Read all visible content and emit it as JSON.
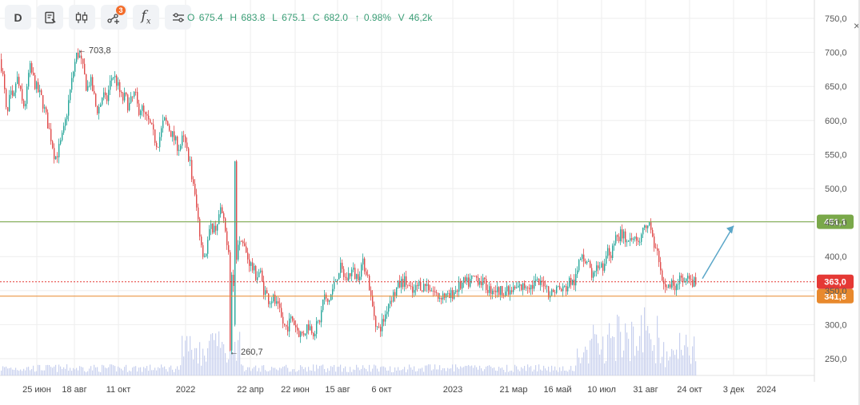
{
  "toolbar": {
    "interval_label": "D",
    "indicators_badge": "3",
    "items": [
      "interval",
      "instrument-menu",
      "chart-type",
      "indicators",
      "functions",
      "settings"
    ]
  },
  "ohlc": {
    "o_label": "O",
    "o": "675.4",
    "h_label": "H",
    "h": "683.8",
    "l_label": "L",
    "l": "675.1",
    "c_label": "C",
    "c": "682.0",
    "arrow": "↑",
    "change": "0.98%",
    "v_label": "V",
    "v": "46,2k"
  },
  "close_glyph": "×",
  "colors": {
    "up": "#26a69a",
    "down": "#e04a4a",
    "green_level": "#7aa84a",
    "orange_level": "#e8892d",
    "red_price": "#e53935",
    "arrow": "#5aa6c8",
    "volume": "#c8d0ee",
    "grid": "#eeeeee"
  },
  "chart_data": {
    "type": "candlestick",
    "y_axis": {
      "ticks": [
        "750,0",
        "700,0",
        "650,0",
        "600,0",
        "550,0",
        "500,0",
        "450,0",
        "400,0",
        "350,0",
        "300,0",
        "250,0"
      ],
      "range": [
        228,
        765
      ]
    },
    "x_axis": {
      "ticks": [
        "25 июн",
        "18 авг",
        "11 окт",
        "2022",
        "22 апр",
        "22 июн",
        "15 авг",
        "6 окт",
        "2023",
        "21 мар",
        "16 май",
        "10 июл",
        "31 авг",
        "24 окт",
        "3 дек",
        "2024"
      ]
    },
    "price_path": [
      [
        0,
        690
      ],
      [
        4,
        655
      ],
      [
        8,
        600
      ],
      [
        12,
        640
      ],
      [
        16,
        625
      ],
      [
        20,
        665
      ],
      [
        24,
        645
      ],
      [
        28,
        620
      ],
      [
        32,
        630
      ],
      [
        36,
        680
      ],
      [
        40,
        665
      ],
      [
        44,
        650
      ],
      [
        48,
        640
      ],
      [
        52,
        630
      ],
      [
        56,
        610
      ],
      [
        60,
        590
      ],
      [
        64,
        570
      ],
      [
        68,
        545
      ],
      [
        72,
        555
      ],
      [
        76,
        570
      ],
      [
        80,
        590
      ],
      [
        84,
        620
      ],
      [
        88,
        650
      ],
      [
        92,
        680
      ],
      [
        96,
        700
      ],
      [
        100,
        690
      ],
      [
        104,
        670
      ],
      [
        108,
        645
      ],
      [
        112,
        660
      ],
      [
        116,
        640
      ],
      [
        120,
        615
      ],
      [
        124,
        620
      ],
      [
        128,
        640
      ],
      [
        132,
        625
      ],
      [
        136,
        650
      ],
      [
        140,
        668
      ],
      [
        144,
        660
      ],
      [
        148,
        645
      ],
      [
        152,
        630
      ],
      [
        156,
        635
      ],
      [
        160,
        620
      ],
      [
        164,
        630
      ],
      [
        168,
        640
      ],
      [
        172,
        615
      ],
      [
        176,
        620
      ],
      [
        180,
        605
      ],
      [
        184,
        600
      ],
      [
        188,
        590
      ],
      [
        192,
        575
      ],
      [
        196,
        565
      ],
      [
        200,
        580
      ],
      [
        204,
        600
      ],
      [
        208,
        595
      ],
      [
        212,
        585
      ],
      [
        216,
        575
      ],
      [
        220,
        565
      ],
      [
        224,
        560
      ],
      [
        228,
        575
      ],
      [
        232,
        560
      ],
      [
        236,
        545
      ],
      [
        240,
        510
      ],
      [
        244,
        480
      ],
      [
        248,
        445
      ],
      [
        252,
        410
      ],
      [
        256,
        400
      ],
      [
        260,
        430
      ],
      [
        264,
        445
      ],
      [
        268,
        440
      ],
      [
        272,
        455
      ],
      [
        276,
        470
      ],
      [
        280,
        440
      ],
      [
        284,
        420
      ],
      [
        288,
        380
      ],
      [
        292,
        350
      ],
      [
        296,
        420
      ],
      [
        300,
        435
      ],
      [
        304,
        415
      ],
      [
        308,
        400
      ],
      [
        312,
        390
      ],
      [
        316,
        380
      ],
      [
        320,
        370
      ],
      [
        324,
        380
      ],
      [
        328,
        355
      ],
      [
        332,
        345
      ],
      [
        336,
        335
      ],
      [
        340,
        340
      ],
      [
        344,
        330
      ],
      [
        348,
        320
      ],
      [
        352,
        305
      ],
      [
        356,
        295
      ],
      [
        360,
        300
      ],
      [
        364,
        310
      ],
      [
        368,
        300
      ],
      [
        372,
        290
      ],
      [
        376,
        285
      ],
      [
        380,
        290
      ],
      [
        384,
        300
      ],
      [
        388,
        295
      ],
      [
        392,
        290
      ],
      [
        396,
        300
      ],
      [
        400,
        310
      ],
      [
        404,
        345
      ],
      [
        408,
        330
      ],
      [
        412,
        340
      ],
      [
        416,
        355
      ],
      [
        420,
        370
      ],
      [
        424,
        385
      ],
      [
        428,
        375
      ],
      [
        432,
        365
      ],
      [
        436,
        375
      ],
      [
        440,
        380
      ],
      [
        444,
        370
      ],
      [
        448,
        375
      ],
      [
        452,
        390
      ],
      [
        456,
        385
      ],
      [
        460,
        365
      ],
      [
        464,
        330
      ],
      [
        468,
        310
      ],
      [
        472,
        290
      ],
      [
        476,
        300
      ],
      [
        480,
        310
      ],
      [
        484,
        330
      ],
      [
        488,
        340
      ],
      [
        492,
        345
      ],
      [
        496,
        355
      ],
      [
        500,
        360
      ],
      [
        504,
        365
      ],
      [
        508,
        360
      ],
      [
        512,
        350
      ],
      [
        516,
        345
      ],
      [
        520,
        355
      ],
      [
        524,
        360
      ],
      [
        528,
        355
      ],
      [
        532,
        360
      ],
      [
        536,
        355
      ],
      [
        540,
        350
      ],
      [
        544,
        345
      ],
      [
        548,
        340
      ],
      [
        552,
        345
      ],
      [
        556,
        342
      ],
      [
        560,
        338
      ],
      [
        564,
        345
      ],
      [
        568,
        350
      ],
      [
        572,
        355
      ],
      [
        576,
        358
      ],
      [
        580,
        362
      ],
      [
        584,
        360
      ],
      [
        588,
        365
      ],
      [
        592,
        370
      ],
      [
        596,
        368
      ],
      [
        600,
        365
      ],
      [
        604,
        360
      ],
      [
        608,
        355
      ],
      [
        612,
        350
      ],
      [
        616,
        355
      ],
      [
        620,
        350
      ],
      [
        624,
        348
      ],
      [
        628,
        352
      ],
      [
        632,
        349
      ],
      [
        636,
        345
      ],
      [
        640,
        350
      ],
      [
        644,
        352
      ],
      [
        648,
        355
      ],
      [
        652,
        354
      ],
      [
        656,
        358
      ],
      [
        660,
        360
      ],
      [
        664,
        355
      ],
      [
        668,
        362
      ],
      [
        672,
        360
      ],
      [
        676,
        358
      ],
      [
        680,
        365
      ],
      [
        684,
        350
      ],
      [
        688,
        345
      ],
      [
        692,
        350
      ],
      [
        696,
        355
      ],
      [
        700,
        350
      ],
      [
        704,
        352
      ],
      [
        708,
        355
      ],
      [
        712,
        365
      ],
      [
        716,
        360
      ],
      [
        720,
        370
      ],
      [
        724,
        395
      ],
      [
        728,
        400
      ],
      [
        732,
        395
      ],
      [
        736,
        385
      ],
      [
        740,
        370
      ],
      [
        744,
        375
      ],
      [
        748,
        390
      ],
      [
        752,
        385
      ],
      [
        756,
        395
      ],
      [
        760,
        410
      ],
      [
        764,
        400
      ],
      [
        768,
        430
      ],
      [
        772,
        425
      ],
      [
        776,
        435
      ],
      [
        780,
        430
      ],
      [
        784,
        415
      ],
      [
        788,
        420
      ],
      [
        792,
        428
      ],
      [
        796,
        432
      ],
      [
        800,
        425
      ],
      [
        804,
        440
      ],
      [
        808,
        435
      ],
      [
        812,
        448
      ],
      [
        816,
        425
      ],
      [
        820,
        405
      ],
      [
        824,
        390
      ],
      [
        828,
        360
      ],
      [
        832,
        352
      ],
      [
        836,
        355
      ],
      [
        840,
        362
      ],
      [
        844,
        358
      ],
      [
        848,
        368
      ],
      [
        852,
        360
      ],
      [
        856,
        362
      ],
      [
        860,
        365
      ],
      [
        864,
        360
      ],
      [
        868,
        363
      ]
    ],
    "annotations": {
      "high": "703,8",
      "low": "260,7"
    },
    "levels": [
      {
        "value": 451.1,
        "label": "451,1",
        "color": "#7aa84a",
        "style": "solid"
      },
      {
        "value": 363.0,
        "label": "363,0",
        "color": "#e53935",
        "style": "dotted"
      },
      {
        "value": 341.8,
        "label": "341,8",
        "color": "#e8892d",
        "style": "solid"
      }
    ],
    "forecast_arrow": {
      "from_value": 363,
      "to_value": 450
    }
  }
}
